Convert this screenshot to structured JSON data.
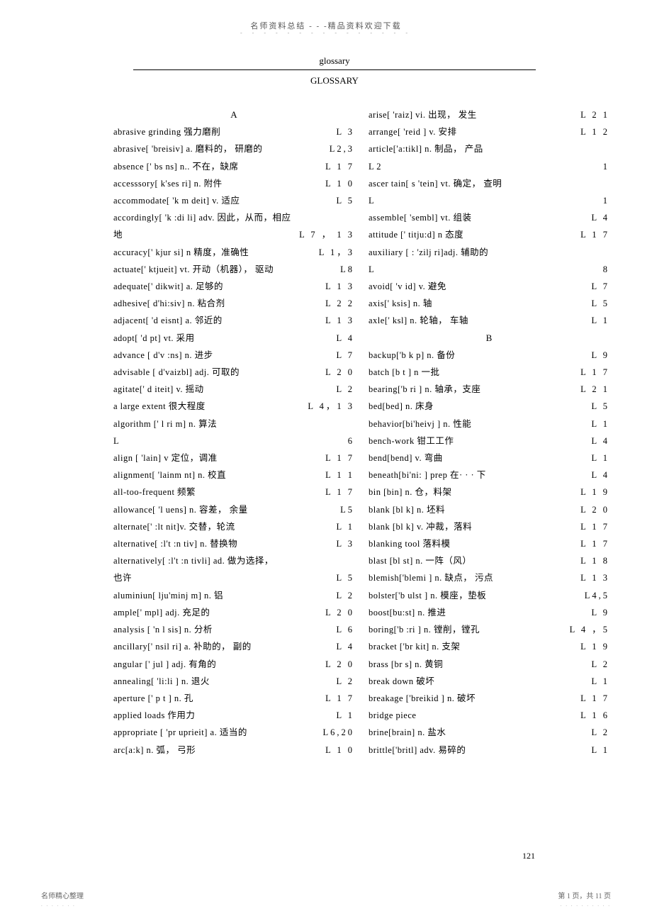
{
  "header": {
    "text": "名师资料总结 - - -精品资料欢迎下载",
    "dots": "- - - - - - - - - - - - - - -"
  },
  "titles": {
    "t1": "glossary",
    "t2": "GLOSSARY"
  },
  "left": {
    "sectA": "A",
    "rows": [
      {
        "t": "abrasive grinding     强力磨削",
        "r": "L   3"
      },
      {
        "t": "abrasive[    'breisiv] a.   磨料的， 研磨的",
        "r": "L2,3"
      },
      {
        "t": "absence ['   bs  ns] n..   不在，缺席",
        "r": "L 1 7"
      },
      {
        "t": "accesssory[   k'ses   ri] n.   附件",
        "r": "L 1 0"
      },
      {
        "t": "accommodate[  'k   m deit] v.   适应",
        "r": "L   5"
      },
      {
        "t": "accordingly[    'k  :di   li]   adv. 因此，从而，相应",
        "r": ""
      },
      {
        "t": "地",
        "r": "L   7 ， 1 3"
      },
      {
        "t": "accuracy['   kjur   si] n   精度，准确性",
        "r": "L 1，3"
      },
      {
        "t": "actuate['    ktjueit] vt.    开动（机器），  驱动",
        "r": "L8"
      },
      {
        "t": "adequate['   dikwit] a.   足够的",
        "r": "L 1 3"
      },
      {
        "t": "adhesive[   d'hi:siv] n.    粘合剂",
        "r": "L 2 2"
      },
      {
        "t": "adjacent[   'd   eisnt] a.    邻近的",
        "r": "L 1 3"
      },
      {
        "t": "adopt[   'd   pt] vt.   采用",
        "r": "L   4"
      },
      {
        "t": "advance [    d'v  :ns] n.  进步",
        "r": "L   7"
      },
      {
        "t": "advisable [    d'vaizbl] adj.    可取的",
        "r": "L 2 0"
      },
      {
        "t": "agitate['   d  iteit] v.    摇动",
        "r": "L   2"
      },
      {
        "t": "a large extent    很大程度",
        "r": "L   4，1 3"
      },
      {
        "t": "algorithm ['   l     ri     m] n.   算法",
        "r": ""
      },
      {
        "t": "L",
        "r": "6"
      },
      {
        "t": "align [     'lain] v    定位，调准",
        "r": "L 1 7"
      },
      {
        "t": "alignment[    'lainm   nt] n.   校直",
        "r": "L 1 1"
      },
      {
        "t": "all-too-frequent     频繁",
        "r": "L    1    7"
      },
      {
        "t": "allowance[    'l    uens] n.   容差， 余量",
        "r": "L5"
      },
      {
        "t": "alternate['    :lt    nit]v.   交替，轮流",
        "r": "L   1"
      },
      {
        "t": "alternative[    :l't    :n   tiv] n.    替换物",
        "r": "L   3"
      },
      {
        "t": "alternatively[     :l't    :n   tivli]    ad. 做为选择，",
        "r": ""
      },
      {
        "t": "也许",
        "r": "L   5"
      },
      {
        "t": "aluminiun[     lju'minj     m] n. 铝",
        "r": "L   2"
      },
      {
        "t": "ample['   mpl] adj.   充足的",
        "r": "L 2 0"
      },
      {
        "t": "analysis [    'n  l    sis] n.    分析",
        "r": "L   6"
      },
      {
        "t": "ancillary['    nsil   ri] a.   补助的， 副的",
        "r": "L   4"
      },
      {
        "t": "angular ['    jul     ] adj.   有角的",
        "r": "L 2 0"
      },
      {
        "t": "annealing[    'li:li      ] n.  退火",
        "r": "L   2"
      },
      {
        "t": "aperture ['   p  t     ] n.  孔",
        "r": "L 1 7"
      },
      {
        "t": "applied loads     作用力",
        "r": "L        1"
      },
      {
        "t": "appropriate   [   'pr    uprieit] a.   适当的",
        "r": "L6,20"
      },
      {
        "t": "arc[a:k] n.   弧， 弓形",
        "r": "L 1 0"
      }
    ]
  },
  "right": {
    "rows1": [
      {
        "t": "arise[    'raiz] vi.    出现， 发生",
        "r": "L 2 1"
      },
      {
        "t": "arrange[    'reid   ] v.   安排",
        "r": "L 1 2"
      },
      {
        "t": "  article['a:tikl] n.      制品， 产品",
        "r": ""
      },
      {
        "t": "  L                        2",
        "r": "1"
      },
      {
        "t": "ascer tain[      s   'tein] vt.      确定， 查明",
        "r": ""
      },
      {
        "t": "  L",
        "r": "1"
      },
      {
        "t": "assemble[    'sembl] vt.   组装",
        "r": "L   4"
      },
      {
        "t": "attitude ['    titju:d] n    态度",
        "r": "L 1 7"
      },
      {
        "t": " auxiliary [    :   'zilj    ri]adj.    辅助的",
        "r": ""
      },
      {
        "t": "L",
        "r": "8"
      },
      {
        "t": "avoid[   'v  id] v.   避免",
        "r": "L   7"
      },
      {
        "t": "axis['   ksis] n.   轴",
        "r": "L    5"
      },
      {
        "t": "axle['   ksl] n.   轮轴， 车轴",
        "r": "L   1"
      }
    ],
    "sectB": "B",
    "rows2": [
      {
        "t": "backup['b   k    p] n.    备份",
        "r": "L    9"
      },
      {
        "t": "batch [b   t   ] n   一批",
        "r": "L 1 7"
      },
      {
        "t": "bearing['b     ri   ] n.  轴承，支座",
        "r": "L 2 1"
      },
      {
        "t": "bed[bed] n.   床身",
        "r": "L    5"
      },
      {
        "t": "behavior[bi'heivj     ] n.    性能",
        "r": "L   1"
      },
      {
        "t": "bench-work    钳工工作",
        "r": "L    4"
      },
      {
        "t": "bend[bend] v.   弯曲",
        "r": "L    1"
      },
      {
        "t": "beneath[bi'ni:    ] prep   在· · · 下",
        "r": "L   4"
      },
      {
        "t": "bin [bin] n.    仓，料架",
        "r": "L   1   9"
      },
      {
        "t": "blank [bl    k] n.    坯料",
        "r": "L   2   0"
      },
      {
        "t": "blank [bl    k] v.    冲裁，落料",
        "r": "L   1   7"
      },
      {
        "t": "blanking tool     落料模",
        "r": "L   1   7"
      },
      {
        "t": "blast [bl    st] n.   一阵（风）",
        "r": "L 1 8"
      },
      {
        "t": "blemish['blemi    ] n.   缺点， 污点",
        "r": "L 1 3"
      },
      {
        "t": "bolster['b    ulst   ] n.    模座，垫板",
        "r": "L4,5"
      },
      {
        "t": "boost[bu:st] n.     推进",
        "r": "L   9"
      },
      {
        "t": "boring['b    :ri   ] n. 镗削，镗孔",
        "r": "L 4 ，5"
      },
      {
        "t": "bracket ['br    kit] n.    支架",
        "r": "L 1 9"
      },
      {
        "t": "brass [br   s] n.  黄铜",
        "r": "L   2"
      },
      {
        "t": "break down    破坏",
        "r": "L    1"
      },
      {
        "t": "breakage ['breikid    ] n.  破坏",
        "r": "L 1 7"
      },
      {
        "t": "bridge piece",
        "r": "L   1   6"
      },
      {
        "t": "brine[brain] n.    盐水",
        "r": "L   2"
      },
      {
        "t": "brittle['britl] adv.       易碎的",
        "r": "L   1"
      }
    ]
  },
  "pagenum": "121",
  "footer": {
    "left": "名师精心整理",
    "leftDots": ". . . . . . .",
    "right": "第 1 页，共 11 页",
    "rightDots": ". . . . . . . . . ."
  }
}
